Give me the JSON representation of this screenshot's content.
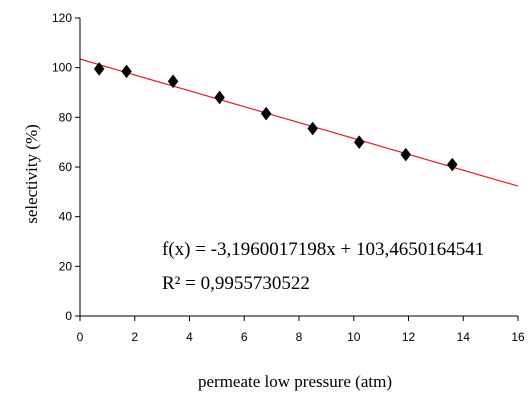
{
  "chart_data": {
    "type": "scatter",
    "title": "",
    "xlabel": "permeate low pressure (atm)",
    "ylabel": "selectivity (%)",
    "xlim": [
      0,
      16
    ],
    "ylim": [
      0,
      120
    ],
    "x_ticks": [
      "0",
      "2",
      "4",
      "6",
      "8",
      "10",
      "12",
      "14",
      "16"
    ],
    "y_ticks": [
      "0",
      "20",
      "40",
      "60",
      "80",
      "100",
      "120"
    ],
    "grid": false,
    "legend": "none",
    "series": [
      {
        "marker": "diamond",
        "color": "#000000",
        "points": [
          {
            "x": 0.7,
            "y": 99.5
          },
          {
            "x": 1.7,
            "y": 98.5
          },
          {
            "x": 3.4,
            "y": 94.5
          },
          {
            "x": 5.1,
            "y": 88
          },
          {
            "x": 6.8,
            "y": 81.5
          },
          {
            "x": 8.5,
            "y": 75.5
          },
          {
            "x": 10.2,
            "y": 70
          },
          {
            "x": 11.9,
            "y": 65
          },
          {
            "x": 13.6,
            "y": 61
          }
        ]
      }
    ],
    "trendline": {
      "color": "#e8191f",
      "slope": -3.1960017198,
      "intercept": 103.4650164541,
      "equation_text": "f(x) = -3,1960017198x + 103,4650164541",
      "r2_text": "R² = 0,9955730522"
    }
  }
}
